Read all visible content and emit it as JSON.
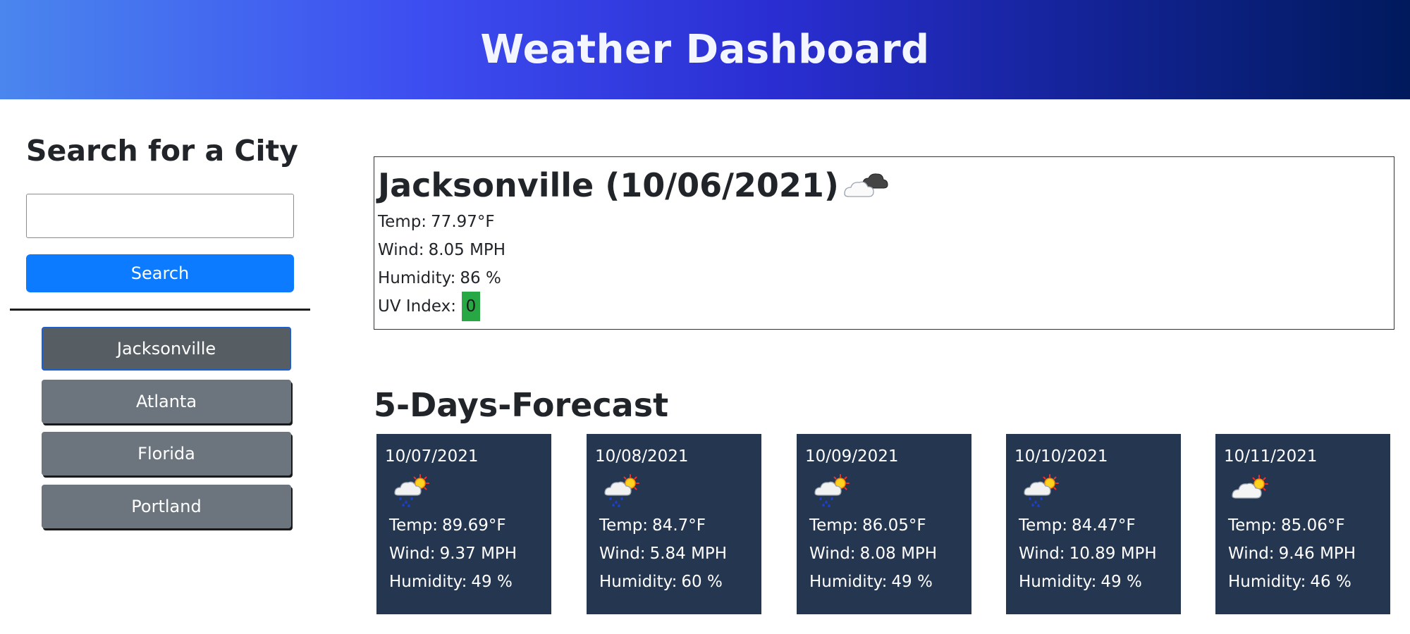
{
  "header": {
    "title": "Weather Dashboard"
  },
  "sidebar": {
    "title": "Search for a City",
    "search_placeholder": "",
    "search_button": "Search",
    "history": [
      "Jacksonville",
      "Atlanta",
      "Florida",
      "Portland"
    ]
  },
  "current": {
    "title": "Jacksonville (10/06/2021)",
    "icon": "partly-cloudy-icon",
    "temp_label": "Temp:",
    "temp": "77.97°F",
    "wind_label": "Wind:",
    "wind": "8.05 MPH",
    "humidity_label": "Humidity:",
    "humidity": "86 %",
    "uv_label": "UV Index:",
    "uv": "0",
    "uv_color": "#28a745"
  },
  "forecast": {
    "title": "5-Days-Forecast",
    "days": [
      {
        "date": "10/07/2021",
        "icon": "rain-sun-icon",
        "temp_label": "Temp:",
        "temp": "89.69°F",
        "wind_label": "Wind:",
        "wind": "9.37 MPH",
        "humidity_label": "Humidity:",
        "humidity": "49 %"
      },
      {
        "date": "10/08/2021",
        "icon": "rain-sun-icon",
        "temp_label": "Temp:",
        "temp": "84.7°F",
        "wind_label": "Wind:",
        "wind": "5.84 MPH",
        "humidity_label": "Humidity:",
        "humidity": "60 %"
      },
      {
        "date": "10/09/2021",
        "icon": "rain-sun-icon",
        "temp_label": "Temp:",
        "temp": "86.05°F",
        "wind_label": "Wind:",
        "wind": "8.08 MPH",
        "humidity_label": "Humidity:",
        "humidity": "49 %"
      },
      {
        "date": "10/10/2021",
        "icon": "rain-sun-icon",
        "temp_label": "Temp:",
        "temp": "84.47°F",
        "wind_label": "Wind:",
        "wind": "10.89 MPH",
        "humidity_label": "Humidity:",
        "humidity": "49 %"
      },
      {
        "date": "10/11/2021",
        "icon": "cloud-sun-icon",
        "temp_label": "Temp:",
        "temp": "85.06°F",
        "wind_label": "Wind:",
        "wind": "9.46 MPH",
        "humidity_label": "Humidity:",
        "humidity": "46 %"
      }
    ]
  },
  "colors": {
    "accent": "#0d7bff",
    "card_bg": "#253651",
    "history_bg": "#6c757d",
    "uv_low": "#28a745"
  }
}
